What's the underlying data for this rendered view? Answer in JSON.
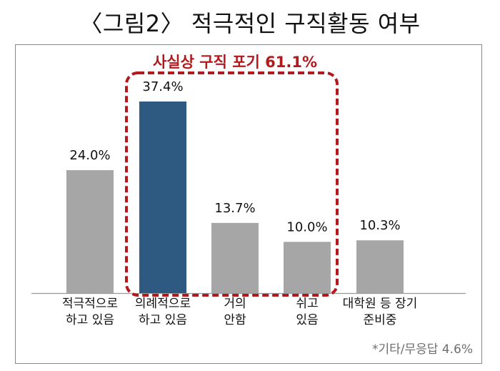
{
  "title": "〈그림2〉 적극적인 구직활동 여부",
  "annotation": "사실상 구직 포기 61.1%",
  "footnote": "*기타/무응답 4.6%",
  "colors": {
    "gray_bar": "#a6a6a6",
    "highlight_bar": "#2e5a82",
    "annotation": "#b3191c"
  },
  "chart_data": {
    "type": "bar",
    "title": "〈그림2〉 적극적인 구직활동 여부",
    "categories": [
      "적극적으로\n하고 있음",
      "의례적으로\n하고 있음",
      "거의\n안함",
      "쉬고\n있음",
      "대학원 등 장기\n준비중"
    ],
    "values": [
      24.0,
      37.4,
      13.7,
      10.0,
      10.3
    ],
    "value_labels": [
      "24.0%",
      "37.4%",
      "13.7%",
      "10.0%",
      "10.3%"
    ],
    "highlighted_index": 1,
    "grouped_categories": [
      1,
      2,
      3
    ],
    "group_label": "사실상 구직 포기 61.1%",
    "ylim": [
      0,
      37.4
    ],
    "grid": false,
    "legend": "none"
  }
}
